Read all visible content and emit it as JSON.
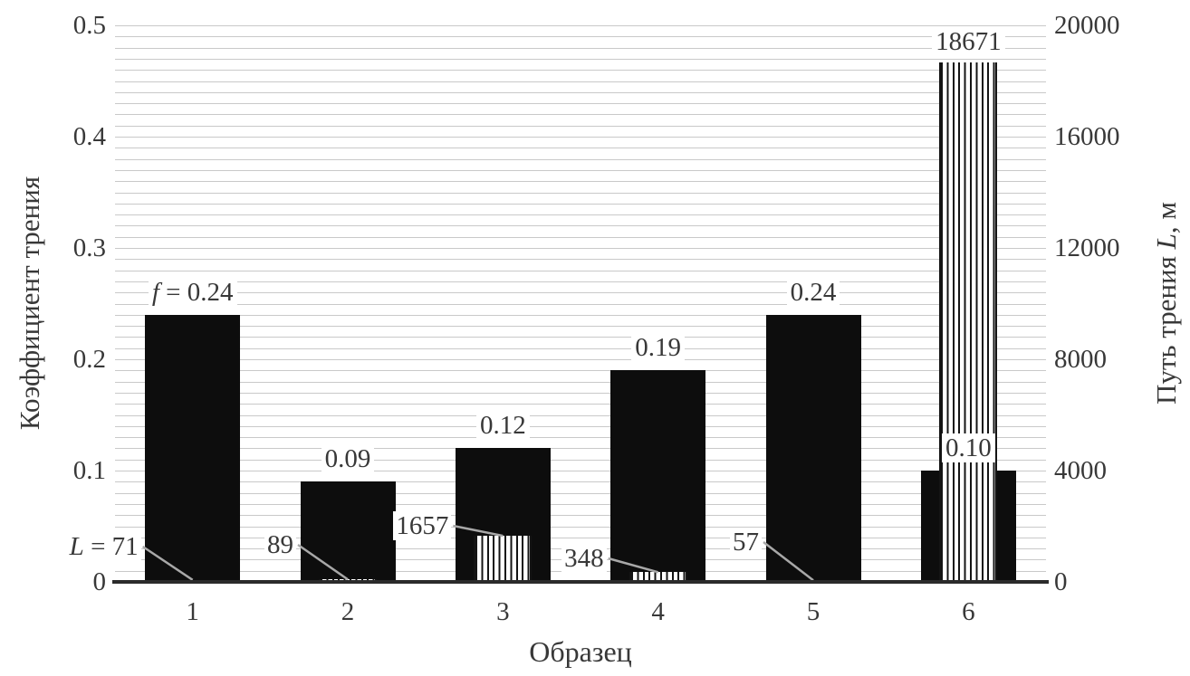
{
  "chart_data": {
    "type": "bar",
    "title": "",
    "categories": [
      "1",
      "2",
      "3",
      "4",
      "5",
      "6"
    ],
    "series": [
      {
        "name": "Коэффициент трения",
        "axis": "left",
        "style": "solid_black",
        "values": [
          0.24,
          0.09,
          0.12,
          0.19,
          0.24,
          0.1
        ],
        "point_labels": [
          "f = 0.24",
          "0.09",
          "0.12",
          "0.19",
          "0.24",
          "0.10"
        ]
      },
      {
        "name": "Путь трения L, м",
        "axis": "right",
        "style": "vertical_stripes",
        "values": [
          71,
          89,
          1657,
          348,
          57,
          18671
        ],
        "point_labels": [
          "L = 71",
          "89",
          "1657",
          "348",
          "57",
          "18671"
        ]
      }
    ],
    "xlabel": "Образец",
    "left_ylabel": "Коэффициент трения",
    "right_ylabel": "Путь трения L, м",
    "left_ylabel_segments": [
      {
        "t": "Коэффициент трения",
        "i": false
      }
    ],
    "right_ylabel_segments": [
      {
        "t": "Путь трения ",
        "i": false
      },
      {
        "t": "L",
        "i": true
      },
      {
        "t": ", м",
        "i": false
      }
    ],
    "left_axis": {
      "ticks": [
        "0",
        "0.1",
        "0.2",
        "0.3",
        "0.4",
        "0.5"
      ],
      "min": 0,
      "max": 0.5
    },
    "right_axis": {
      "ticks": [
        "0",
        "4000",
        "8000",
        "12000",
        "16000",
        "20000"
      ],
      "min": 0,
      "max": 20000
    },
    "grid": {
      "orientation": "horizontal",
      "minor_step_left_axis": 0.01,
      "minor_step_right_axis": 400,
      "minor_line_count": 50
    },
    "legend": "none"
  },
  "colors": {
    "background": "#ffffff",
    "bar_fill": "#0d0d0d",
    "stripe_dark": "#141414",
    "stripe_light": "#ffffff",
    "grid": "#c9c9c9",
    "axis_line": "#2b2b2b",
    "text": "#383838",
    "leader_line": "#a8a8a8"
  }
}
